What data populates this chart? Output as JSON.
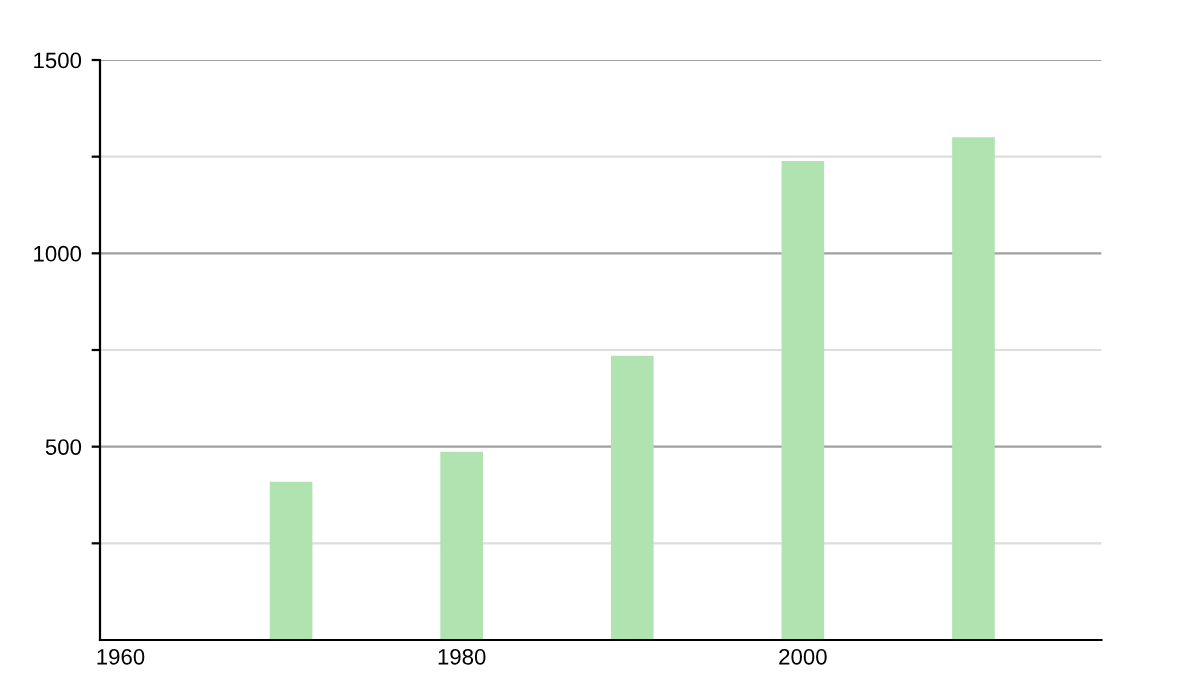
{
  "chart_data": {
    "type": "bar",
    "x": [
      1970,
      1980,
      1990,
      2000,
      2010
    ],
    "values": [
      409,
      487,
      735,
      1239,
      1300
    ],
    "color": "#b1e3b0",
    "xlim": [
      1958.8,
      2017.5
    ],
    "xticks": [
      1960,
      1980,
      2000
    ],
    "ylim": [
      0,
      1500
    ],
    "yticks": [
      {
        "value": 250,
        "label": null
      },
      500,
      {
        "value": 750,
        "label": null
      },
      1000,
      {
        "value": 1250,
        "label": null
      },
      1500
    ],
    "grid": "y"
  }
}
